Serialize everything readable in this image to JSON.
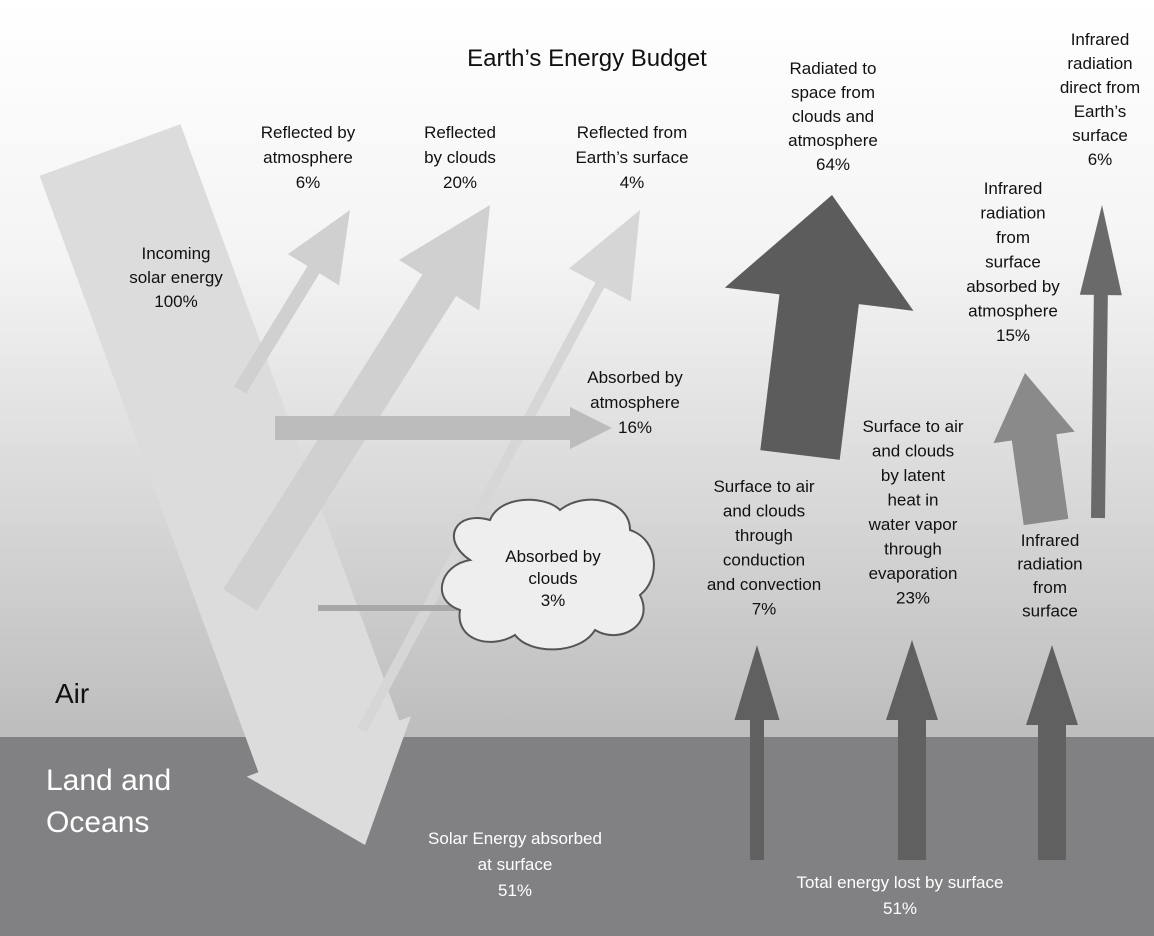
{
  "title": "Earth’s Energy Budget",
  "regions": {
    "air": "Air",
    "land": [
      "Land and",
      "Oceans"
    ]
  },
  "labels": [
    [
      "Reflected by",
      "atmosphere",
      "6%"
    ],
    [
      "Reflected",
      "by clouds",
      "20%"
    ],
    [
      "Reflected from",
      "Earth’s surface",
      "4%"
    ],
    [
      "Radiated to",
      "space from",
      "clouds and",
      "atmosphere",
      "64%"
    ],
    [
      "Infrared",
      "radiation",
      "direct from",
      "Earth’s",
      "surface",
      "6%"
    ],
    [
      "Incoming",
      "solar energy",
      "100%"
    ],
    [
      "Infrared",
      "radiation",
      "from",
      "surface",
      "absorbed by",
      "atmosphere",
      "15%"
    ],
    [
      "Absorbed by",
      "atmosphere",
      "16%"
    ],
    [
      "Surface to air",
      "and clouds",
      "by latent",
      "heat in",
      "water vapor",
      "through",
      "evaporation",
      "23%"
    ],
    [
      "Surface to air",
      "and clouds",
      "through",
      "conduction",
      "and convection",
      "7%"
    ],
    [
      "Absorbed by",
      "clouds",
      "3%"
    ],
    [
      "Infrared",
      "radiation",
      "from",
      "surface"
    ],
    [
      "Solar Energy absorbed",
      "at surface",
      "51%"
    ],
    [
      "Total energy lost by surface",
      "51%"
    ]
  ]
}
